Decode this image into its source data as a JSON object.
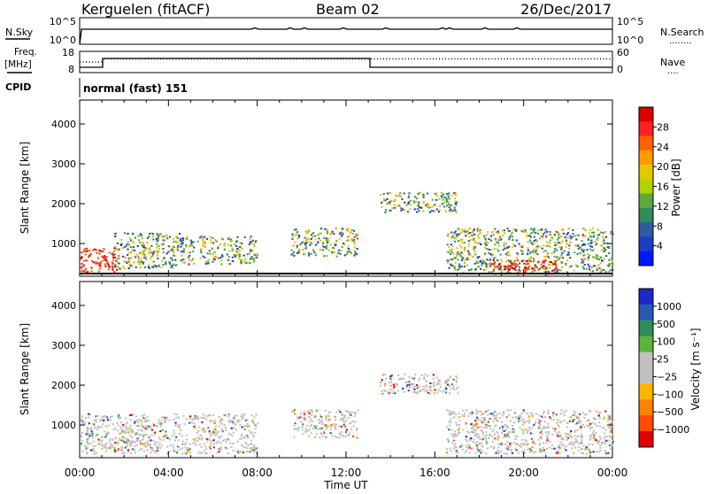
{
  "header": {
    "station": "Kerguelen (fitACF)",
    "beam": "Beam 02",
    "date": "26/Dec/2017"
  },
  "sky_panel": {
    "left_label": "N.Sky",
    "left_ticks": [
      "10^5",
      "10^0"
    ],
    "right_ticks": [
      "10^5",
      "10^0"
    ],
    "right_label": "N.Search",
    "right_legend": "........"
  },
  "freq_panel": {
    "left_label_1": "Freq.",
    "left_label_2": "[MHz]",
    "left_ticks": [
      "18",
      "8"
    ],
    "right_ticks": [
      "60",
      "0"
    ],
    "right_label": "Nave",
    "right_legend": "....",
    "cpid_label": "CPID",
    "cpid_text": "normal (fast) 151"
  },
  "chart_data": [
    {
      "type": "heatmap",
      "title": "",
      "xlabel": "Time UT",
      "ylabel": "Slant Range [km]",
      "x_ticks": [
        "00:00",
        "04:00",
        "08:00",
        "12:00",
        "16:00",
        "20:00",
        "00:00"
      ],
      "x_hours": [
        0,
        4,
        8,
        12,
        16,
        20,
        24
      ],
      "y_ticks": [
        1000,
        2000,
        3000,
        4000
      ],
      "ylim": [
        180,
        4600
      ],
      "colorbar": {
        "label": "Power [dB]",
        "ticks": [
          "28",
          "24",
          "20",
          "16",
          "12",
          "8",
          "4"
        ],
        "colors": [
          "#d80000",
          "#ff2020",
          "#ff6000",
          "#ff9a00",
          "#e6c800",
          "#b4d200",
          "#5aaa3c",
          "#2e8c5a",
          "#2e5aa0",
          "#1c3cc8",
          "#0018ff"
        ]
      },
      "echo_regions": [
        {
          "t0": 0.0,
          "t1": 1.8,
          "r0": 240,
          "r1": 900,
          "level": "high"
        },
        {
          "t0": 1.5,
          "t1": 4.5,
          "r0": 400,
          "r1": 1300,
          "level": "mid"
        },
        {
          "t0": 4.5,
          "t1": 8.0,
          "r0": 500,
          "r1": 1200,
          "level": "mid"
        },
        {
          "t0": 9.5,
          "t1": 12.5,
          "r0": 700,
          "r1": 1400,
          "level": "mid"
        },
        {
          "t0": 13.5,
          "t1": 17.0,
          "r0": 1800,
          "r1": 2300,
          "level": "mid"
        },
        {
          "t0": 16.5,
          "t1": 24.0,
          "r0": 300,
          "r1": 1400,
          "level": "mid"
        },
        {
          "t0": 18.5,
          "t1": 21.5,
          "r0": 250,
          "r1": 600,
          "level": "high"
        }
      ]
    },
    {
      "type": "heatmap",
      "title": "",
      "xlabel": "Time UT",
      "ylabel": "Slant Range [km]",
      "x_ticks": [
        "00:00",
        "04:00",
        "08:00",
        "12:00",
        "16:00",
        "20:00",
        "00:00"
      ],
      "x_hours": [
        0,
        4,
        8,
        12,
        16,
        20,
        24
      ],
      "y_ticks": [
        1000,
        2000,
        3000,
        4000
      ],
      "ylim": [
        180,
        4600
      ],
      "colorbar": {
        "label": "Velocity [m s⁻¹]",
        "ticks": [
          "1000",
          "500",
          "100",
          "25",
          "−25",
          "−100",
          "−500",
          "−1000"
        ],
        "colors": [
          "#1c28c8",
          "#2a5ab4",
          "#2e8c5a",
          "#5ab43c",
          "#c0c0c0",
          "#c0c0c0",
          "#ffb400",
          "#ff8200",
          "#ff4a00",
          "#e00000"
        ]
      },
      "echo_regions": [
        {
          "t0": 0.0,
          "t1": 8.0,
          "r0": 300,
          "r1": 1300,
          "level": "low"
        },
        {
          "t0": 9.5,
          "t1": 12.5,
          "r0": 700,
          "r1": 1400,
          "level": "low"
        },
        {
          "t0": 13.5,
          "t1": 17.0,
          "r0": 1800,
          "r1": 2300,
          "level": "low"
        },
        {
          "t0": 16.5,
          "t1": 24.0,
          "r0": 300,
          "r1": 1400,
          "level": "low"
        }
      ]
    }
  ]
}
